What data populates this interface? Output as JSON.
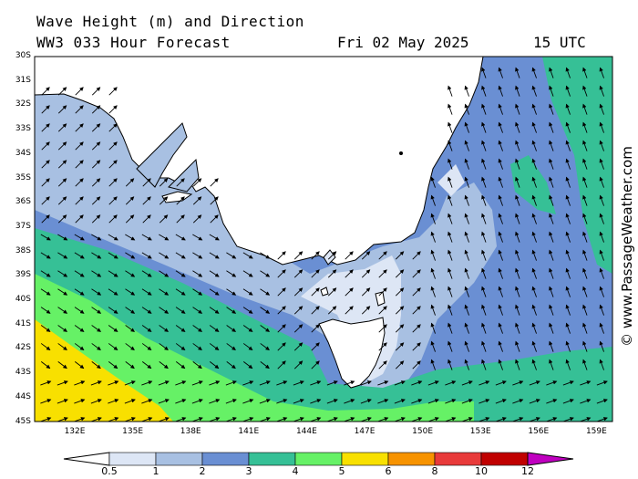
{
  "header": {
    "title": "Wave Height (m) and Direction",
    "model_line": "WW3 033 Hour Forecast",
    "date": "Fri 02 May 2025",
    "time": "15 UTC"
  },
  "credit": "© www.PassageWeather.com",
  "map": {
    "lat_labels": [
      "30S",
      "31S",
      "32S",
      "33S",
      "34S",
      "35S",
      "36S",
      "37S",
      "38S",
      "39S",
      "40S",
      "41S",
      "42S",
      "43S",
      "44S",
      "45S"
    ],
    "lon_labels": [
      "132E",
      "135E",
      "138E",
      "141E",
      "144E",
      "147E",
      "150E",
      "153E",
      "156E",
      "159E"
    ]
  },
  "legend": {
    "labels": [
      "0.5",
      "1",
      "2",
      "3",
      "4",
      "5",
      "6",
      "8",
      "10",
      "12"
    ],
    "colors": [
      "#dde6f5",
      "#a8c0e2",
      "#6a8fd3",
      "#36c096",
      "#66f166",
      "#f8e000",
      "#f79300",
      "#e83a3a",
      "#c00000",
      "#c000c0"
    ]
  },
  "colors": {
    "land": "#ffffff",
    "band_lightest": "#dde6f5",
    "band_light": "#a8c0e2",
    "band_mid": "#6a8fd3",
    "band_teal": "#36c096",
    "band_green": "#66f166",
    "band_yellow": "#f8e000"
  }
}
